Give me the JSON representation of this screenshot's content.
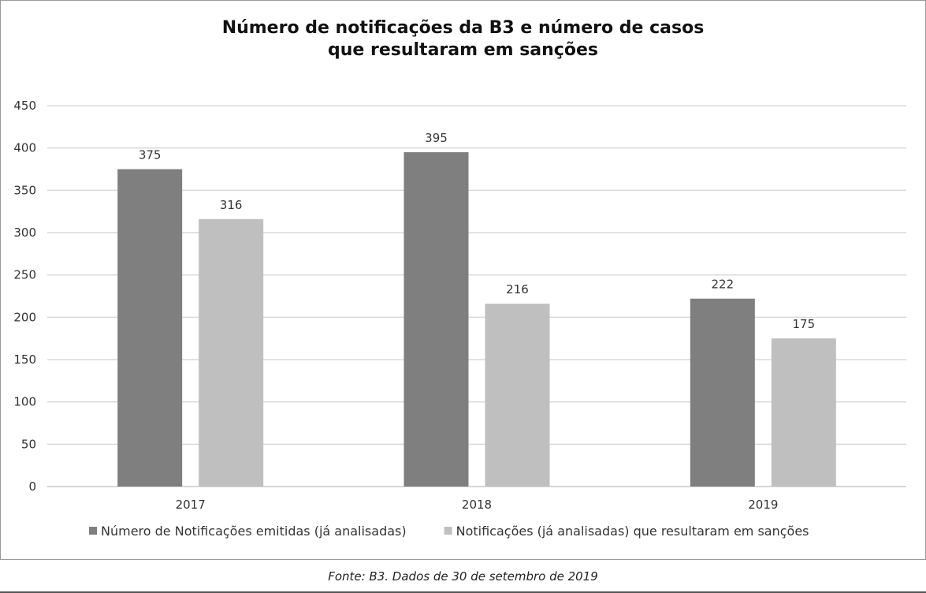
{
  "chart_data": {
    "type": "bar",
    "title_lines": [
      "Número de notificações da B3 e número de casos",
      "que resultaram em sanções"
    ],
    "categories": [
      "2017",
      "2018",
      "2019"
    ],
    "series": [
      {
        "name": "Número de Notificações emitidas (já analisadas)",
        "values": [
          375,
          395,
          222
        ],
        "color": "#7f7f7f"
      },
      {
        "name": "Notificações (já analisadas) que resultaram em sanções",
        "values": [
          316,
          216,
          175
        ],
        "color": "#bfbfbf"
      }
    ],
    "ylim": [
      0,
      450
    ],
    "yticks": [
      0,
      50,
      100,
      150,
      200,
      250,
      300,
      350,
      400,
      450
    ],
    "grid": true,
    "legend_position": "bottom"
  },
  "footer": "Fonte: B3. Dados de 30 de setembro de 2019"
}
